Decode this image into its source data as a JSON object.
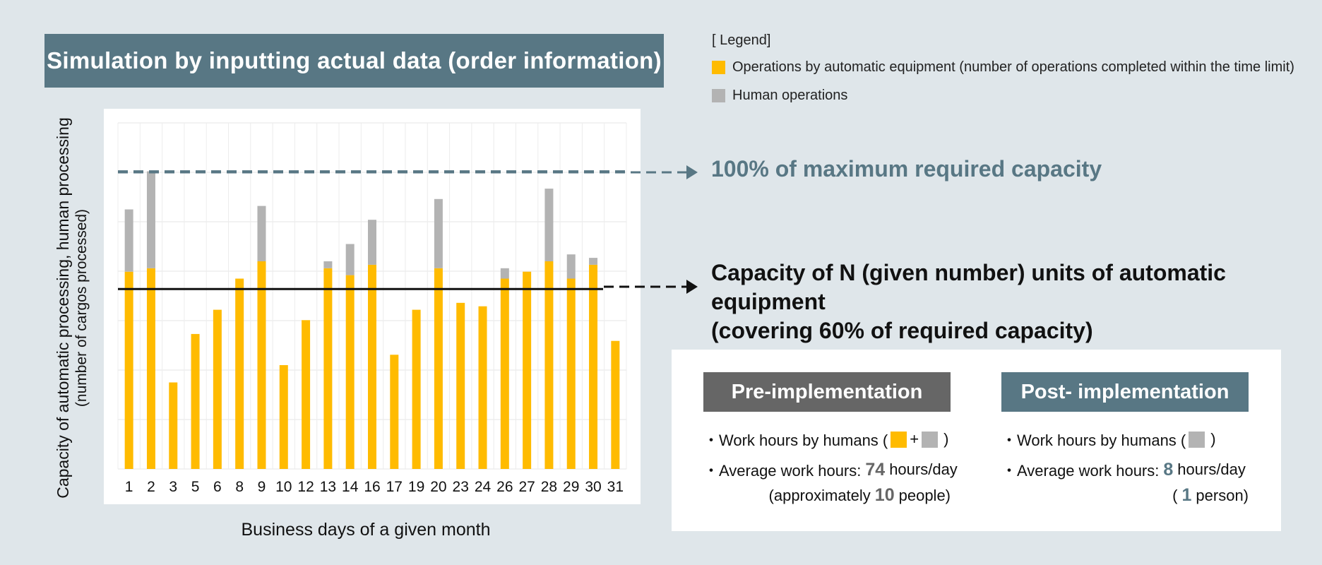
{
  "title": "Simulation by inputting actual data (order information)",
  "colors": {
    "automatic": "#ffbb00",
    "human": "#b3b3b3",
    "accent": "#587784",
    "pre_header": "#666666"
  },
  "legend": {
    "title": "[ Legend]",
    "automatic": "Operations by automatic equipment (number of operations completed within the time limit)",
    "human": "Human operations"
  },
  "annotations": {
    "max_capacity": "100% of maximum required capacity",
    "n_units_line1": "Capacity of N (given number) units of automatic equipment",
    "n_units_line2": "(covering 60% of required capacity)"
  },
  "chart_data": {
    "type": "bar",
    "stacked": true,
    "ylabel_line1": "Capacity of automatic processing, human processing",
    "ylabel_line2": "(number of cargos processed)",
    "xlabel": "Business days of a given month",
    "categories": [
      "1",
      "2",
      "3",
      "5",
      "6",
      "8",
      "9",
      "10",
      "12",
      "13",
      "14",
      "16",
      "17",
      "19",
      "20",
      "23",
      "24",
      "26",
      "27",
      "28",
      "29",
      "30",
      "31"
    ],
    "series": [
      {
        "name": "Operations by automatic equipment (number of operations completed within the time limit)",
        "values": [
          57,
          58,
          25,
          39,
          46,
          55,
          60,
          30,
          43,
          58,
          56,
          59,
          33,
          46,
          58,
          48,
          47,
          55,
          57,
          60,
          55,
          59,
          37
        ]
      },
      {
        "name": "Human operations",
        "values": [
          18,
          28,
          0,
          0,
          0,
          0,
          16,
          0,
          0,
          2,
          9,
          13,
          0,
          0,
          20,
          0,
          0,
          3,
          0,
          21,
          7,
          2,
          0
        ]
      }
    ],
    "reference_lines": {
      "max_required": 86,
      "n_units_capacity": 52
    },
    "ylim": [
      0,
      100
    ],
    "grid": true,
    "legend_position": "top-right"
  },
  "comparison": {
    "pre": {
      "header": "Pre-implementation",
      "bullet1": "・Work hours by humans (",
      "plus": "+",
      "close": ")",
      "bullet2": "・Average work hours:",
      "hours_value": "74",
      "hours_unit": "hours/day",
      "people_prefix": "(approximately",
      "people_value": "10",
      "people_suffix": "people)"
    },
    "post": {
      "header": "Post- implementation",
      "bullet1": "・Work hours by humans (",
      "close": ")",
      "bullet2": "・Average work hours:",
      "hours_value": "8",
      "hours_unit": "hours/day",
      "people_prefix": "(",
      "people_value": "1",
      "people_suffix": "person)"
    }
  }
}
